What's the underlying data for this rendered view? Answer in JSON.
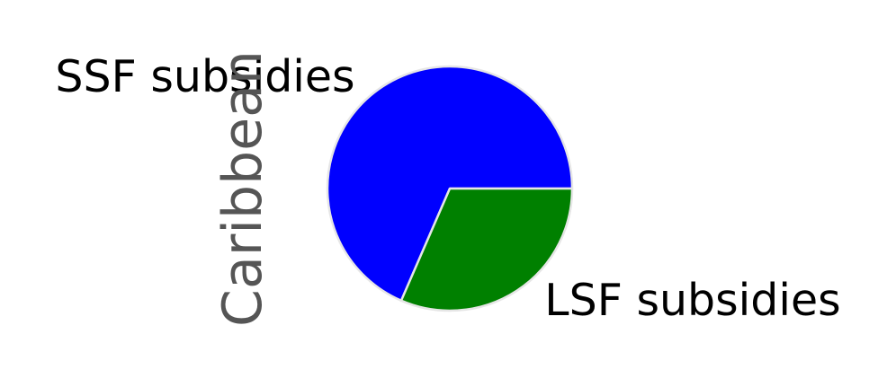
{
  "chart_data": {
    "type": "pie",
    "ylabel": "Caribbean",
    "slices": [
      {
        "label": "SSF subsidies",
        "value": 68.5,
        "color": "#0000ff"
      },
      {
        "label": "LSF subsidies",
        "value": 31.5,
        "color": "#008000"
      }
    ],
    "start_angle_deg": 0,
    "direction": "clockwise",
    "wedge_edge_color": "#e6e6e6"
  }
}
